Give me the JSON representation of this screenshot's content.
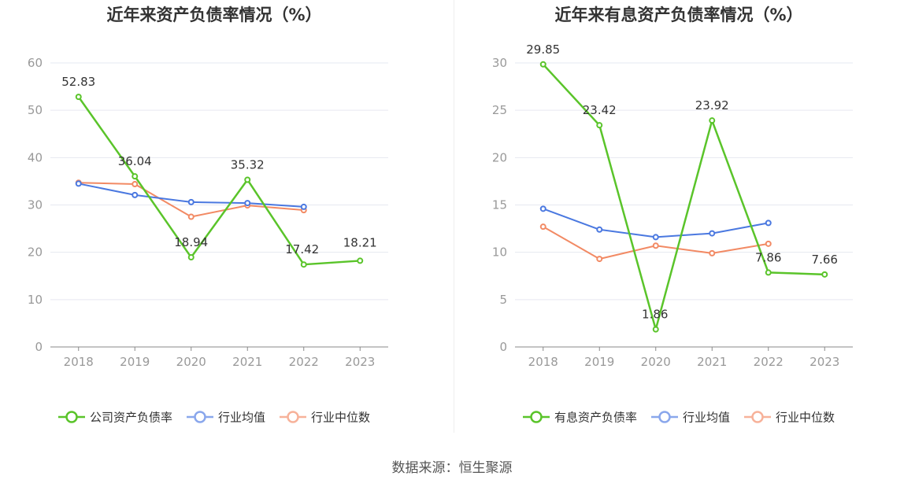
{
  "source": "数据来源：恒生聚源",
  "colors": {
    "company": "#5ac42a",
    "industry_avg": "#4a78e0",
    "industry_median": "#f28a64",
    "grid": "#e6e8f0",
    "axis": "#999999"
  },
  "chart_data": [
    {
      "type": "line",
      "title": "近年来资产负债率情况（%）",
      "categories": [
        "2018",
        "2019",
        "2020",
        "2021",
        "2022",
        "2023"
      ],
      "ylim": [
        0,
        60
      ],
      "yticks": [
        0,
        10,
        20,
        30,
        40,
        50,
        60
      ],
      "grid": true,
      "legend_position": "bottom",
      "series": [
        {
          "name": "公司资产负债率",
          "values": [
            52.83,
            36.04,
            18.94,
            35.32,
            17.42,
            18.21
          ],
          "labels": [
            "52.83",
            "36.04",
            "18.94",
            "35.32",
            "17.42",
            "18.21"
          ]
        },
        {
          "name": "行业均值",
          "values": [
            34.5,
            32.1,
            30.6,
            30.4,
            29.6,
            null
          ]
        },
        {
          "name": "行业中位数",
          "values": [
            34.7,
            34.4,
            27.5,
            29.9,
            28.9,
            null
          ]
        }
      ]
    },
    {
      "type": "line",
      "title": "近年来有息资产负债率情况（%）",
      "categories": [
        "2018",
        "2019",
        "2020",
        "2021",
        "2022",
        "2023"
      ],
      "ylim": [
        0,
        30
      ],
      "yticks": [
        0,
        5,
        10,
        15,
        20,
        25,
        30
      ],
      "grid": true,
      "legend_position": "bottom",
      "series": [
        {
          "name": "有息资产负债率",
          "values": [
            29.85,
            23.42,
            1.86,
            23.92,
            7.86,
            7.66
          ],
          "labels": [
            "29.85",
            "23.42",
            "1.86",
            "23.92",
            "7.86",
            "7.66"
          ]
        },
        {
          "name": "行业均值",
          "values": [
            14.6,
            12.4,
            11.6,
            12.0,
            13.1,
            null
          ]
        },
        {
          "name": "行业中位数",
          "values": [
            12.7,
            9.3,
            10.7,
            9.9,
            10.9,
            null
          ]
        }
      ]
    }
  ]
}
